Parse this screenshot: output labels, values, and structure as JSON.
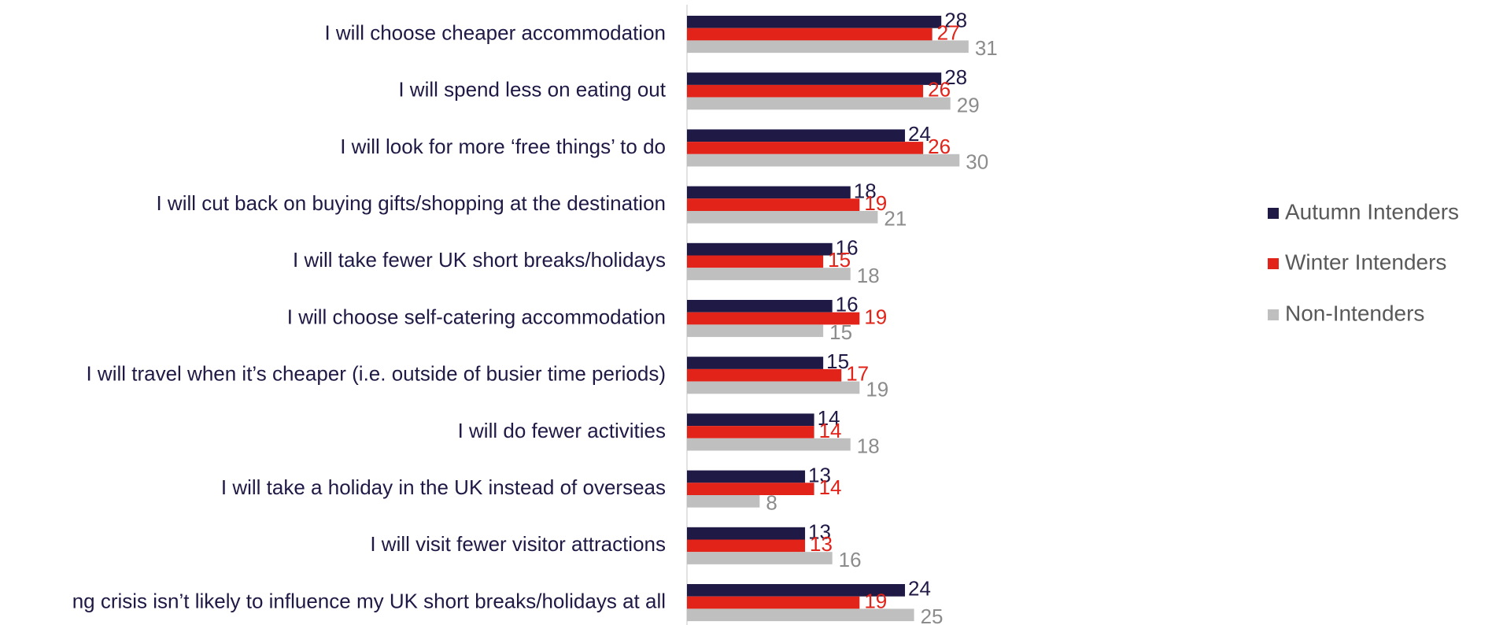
{
  "chart_data": {
    "type": "bar",
    "orientation": "horizontal",
    "categories": [
      "I will choose cheaper accommodation",
      "I will spend less on eating out",
      "I will look for more ‘free things’ to do",
      "I will cut back on buying gifts/shopping at the destination",
      "I will take fewer UK short breaks/holidays",
      "I will choose self-catering accommodation",
      "I will travel when it’s cheaper (i.e. outside of busier time periods)",
      "I will do fewer activities",
      "I will take a holiday in the UK instead of overseas",
      "I will visit fewer visitor attractions",
      "ng crisis isn’t likely to influence my UK short breaks/holidays at all"
    ],
    "series": [
      {
        "name": "Autumn Intenders",
        "color": "#1f1a45",
        "label_color": "#1f1a45",
        "values": [
          28,
          28,
          24,
          18,
          16,
          16,
          15,
          14,
          13,
          13,
          24
        ]
      },
      {
        "name": "Winter Intenders",
        "color": "#e2231a",
        "label_color": "#e2231a",
        "values": [
          27,
          26,
          26,
          19,
          15,
          19,
          17,
          14,
          14,
          13,
          19
        ]
      },
      {
        "name": "Non-Intenders",
        "color": "#bfbfbf",
        "label_color": "#8c8c8c",
        "values": [
          31,
          29,
          30,
          21,
          18,
          15,
          19,
          18,
          8,
          16,
          25
        ]
      }
    ],
    "xlim": [
      0,
      35
    ],
    "legend": "right",
    "grid": false
  }
}
